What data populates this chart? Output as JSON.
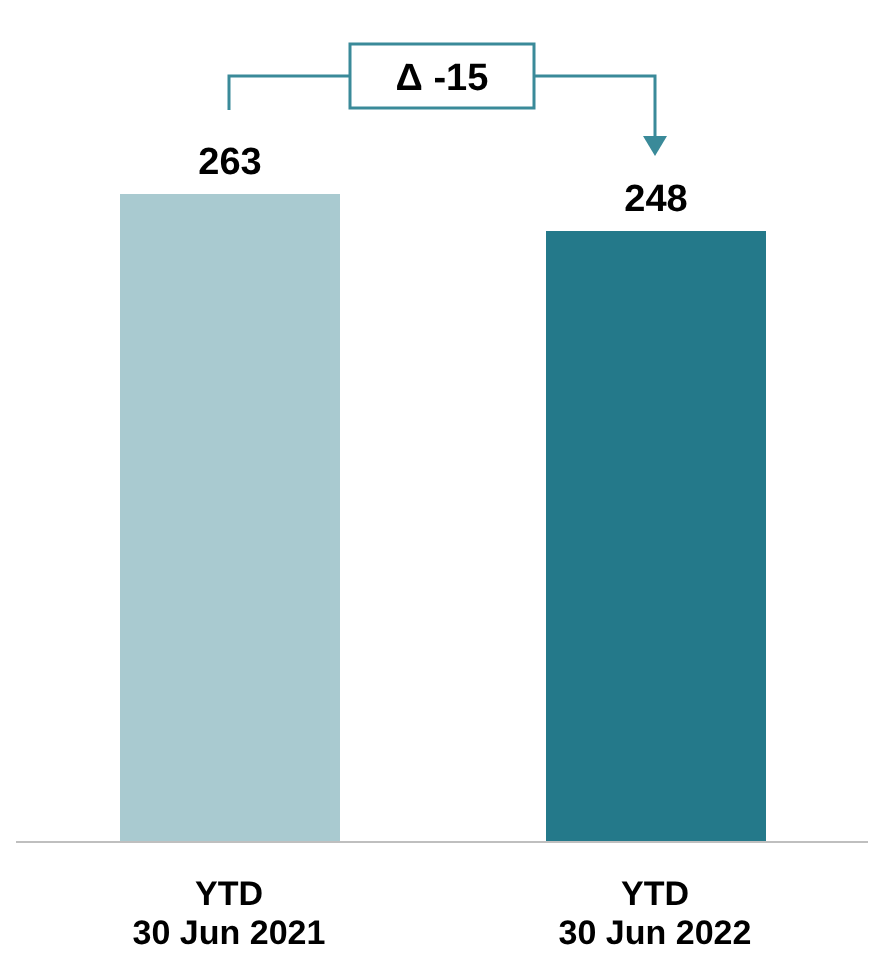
{
  "chart_data": {
    "type": "bar",
    "categories": [
      "YTD\n30 Jun 2021",
      "YTD\n30 Jun 2022"
    ],
    "values": [
      263,
      248
    ],
    "colors": [
      "#a9cad0",
      "#24798a"
    ],
    "data_labels": true,
    "annotations": [
      "Δ -15"
    ]
  }
}
